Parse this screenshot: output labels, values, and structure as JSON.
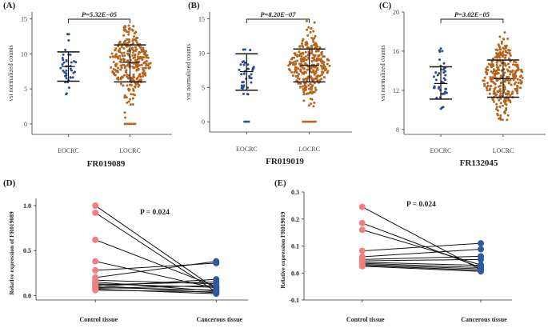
{
  "chart_data": [
    {
      "panel": "(A)",
      "type": "scatter",
      "title": "FR019089",
      "ylabel": "vst normalized counts",
      "categories": [
        "EOCRC",
        "LOCRC"
      ],
      "ylim": [
        -1.5,
        16
      ],
      "yticks": [
        0,
        5,
        10,
        15
      ],
      "pvalue": "P=5.32E−05",
      "summary": [
        {
          "group": "EOCRC",
          "mean": 8.2,
          "sd_low": 6.1,
          "sd_high": 10.3,
          "n": 40,
          "min": 4.3,
          "max": 12.8,
          "zeros": 0,
          "color": "#2b4f8c"
        },
        {
          "group": "LOCRC",
          "mean": 8.8,
          "sd_low": 6.0,
          "sd_high": 11.3,
          "n": 300,
          "min": 0.9,
          "max": 14.0,
          "zeros": 6,
          "color": "#b5651d"
        }
      ]
    },
    {
      "panel": "(B)",
      "type": "scatter",
      "title": "FR019019",
      "ylabel": "vst normalized counts",
      "categories": [
        "EOCRC",
        "LOCRC"
      ],
      "ylim": [
        -1.5,
        16
      ],
      "yticks": [
        0,
        5,
        10,
        15
      ],
      "pvalue": "P=8.20E−07",
      "summary": [
        {
          "group": "EOCRC",
          "mean": 7.3,
          "sd_low": 4.6,
          "sd_high": 9.9,
          "n": 40,
          "min": 4.0,
          "max": 10.5,
          "zeros": 3,
          "color": "#2b4f8c"
        },
        {
          "group": "LOCRC",
          "mean": 8.2,
          "sd_low": 5.8,
          "sd_high": 10.6,
          "n": 300,
          "min": 2.0,
          "max": 14.8,
          "zeros": 7,
          "color": "#b5651d"
        }
      ]
    },
    {
      "panel": "(C)",
      "type": "scatter",
      "title": "FR132045",
      "ylabel": "vst normalized counts",
      "categories": [
        "EOCRC",
        "LOCRC"
      ],
      "ylim": [
        7.5,
        20
      ],
      "yticks": [
        8,
        12,
        16,
        20
      ],
      "pvalue": "P=3.02E−05",
      "summary": [
        {
          "group": "EOCRC",
          "mean": 12.7,
          "sd_low": 11.1,
          "sd_high": 14.4,
          "n": 42,
          "min": 10.1,
          "max": 16.3,
          "zeros": 0,
          "color": "#2b4f8c"
        },
        {
          "group": "LOCRC",
          "mean": 13.2,
          "sd_low": 11.3,
          "sd_high": 15.1,
          "n": 300,
          "min": 9.0,
          "max": 18.8,
          "zeros": 0,
          "color": "#b5651d"
        }
      ]
    },
    {
      "panel": "(D)",
      "type": "line",
      "title": "",
      "ylabel": "Relative expression of FR019089",
      "categories": [
        "Control tissue",
        "Cancerous tissue"
      ],
      "ylim": [
        -0.05,
        1.08
      ],
      "yticks": [
        0.0,
        0.5,
        1.0
      ],
      "ytick_labels": [
        "0.0",
        "0.5",
        "1.0"
      ],
      "pvalue": "P = 0.024",
      "pairs": [
        [
          1.0,
          0.07
        ],
        [
          0.92,
          0.04
        ],
        [
          0.62,
          0.1
        ],
        [
          0.38,
          0.08
        ],
        [
          0.28,
          0.36
        ],
        [
          0.2,
          0.38
        ],
        [
          0.17,
          0.13
        ],
        [
          0.15,
          0.05
        ],
        [
          0.13,
          0.09
        ],
        [
          0.12,
          0.15
        ],
        [
          0.11,
          0.03
        ],
        [
          0.1,
          0.18
        ],
        [
          0.09,
          0.06
        ],
        [
          0.08,
          0.11
        ],
        [
          0.07,
          0.02
        ],
        [
          0.06,
          0.04
        ]
      ],
      "colors": {
        "control": "#f08080",
        "cancer": "#2f5a9e"
      }
    },
    {
      "panel": "(E)",
      "type": "line",
      "title": "",
      "ylabel": "Relative expression FR019019",
      "categories": [
        "Control tissue",
        "Cancerous tissue"
      ],
      "ylim": [
        -0.1,
        0.3
      ],
      "yticks": [
        -0.1,
        0.0,
        0.1,
        0.2,
        0.3
      ],
      "ytick_labels": [
        "-0.1",
        "0.0",
        "0.1",
        "0.2",
        "0.3"
      ],
      "pvalue": "P = 0.024",
      "pairs": [
        [
          0.245,
          0.012
        ],
        [
          0.185,
          0.02
        ],
        [
          0.16,
          0.03
        ],
        [
          0.082,
          0.11
        ],
        [
          0.06,
          0.088
        ],
        [
          0.05,
          0.062
        ],
        [
          0.045,
          0.05
        ],
        [
          0.04,
          0.028
        ],
        [
          0.036,
          0.02
        ],
        [
          0.032,
          0.015
        ],
        [
          0.028,
          0.01
        ],
        [
          0.025,
          0.006
        ]
      ],
      "colors": {
        "control": "#f08080",
        "cancer": "#2f5a9e"
      }
    }
  ]
}
